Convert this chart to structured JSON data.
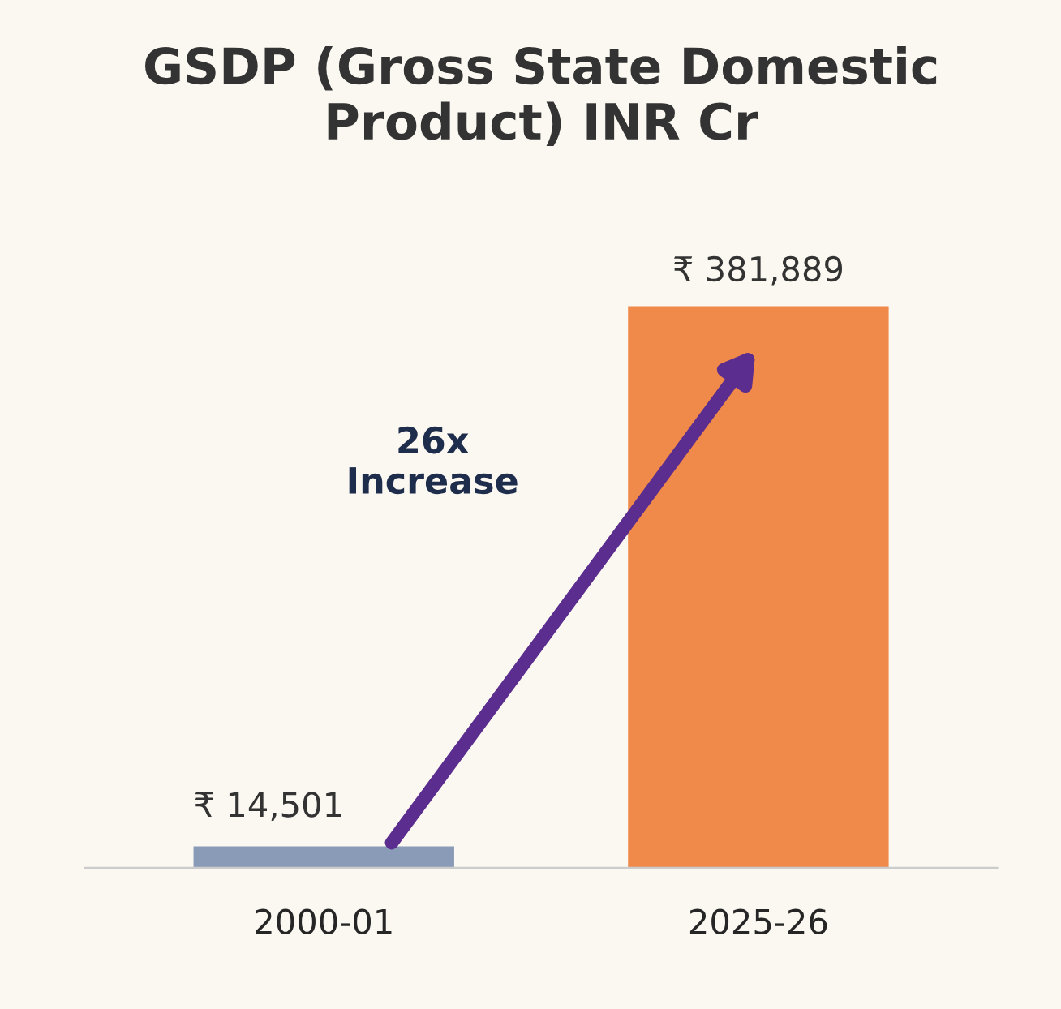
{
  "chart_data": {
    "type": "bar",
    "title": "GSDP (Gross State Domestic Product) INR Cr",
    "categories": [
      "2000-01",
      "2025-26"
    ],
    "values": [
      14501,
      381889
    ],
    "colors": [
      "#8a9bb8",
      "#f08a4b"
    ],
    "value_labels": [
      "₹ 14,501",
      "₹ 381,889"
    ],
    "annotations": [
      "26x Increase"
    ],
    "grid": false,
    "legend": false
  }
}
